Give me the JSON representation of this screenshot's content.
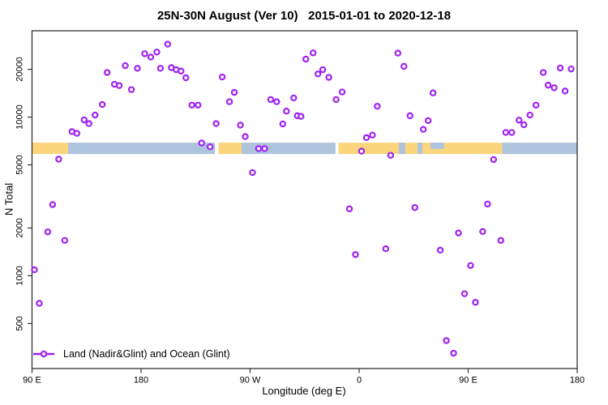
{
  "title": "25N-30N August (Ver 10)   2015-01-01 to 2020-12-18",
  "chart_data": {
    "type": "scatter",
    "title": "25N-30N August (Ver 10)   2015-01-01 to 2020-12-18",
    "xlabel": "Longitude (deg E)",
    "ylabel": "N Total",
    "grid": false,
    "x_axis": {
      "min": 90,
      "max": 540,
      "note": "axis wraps eastward: 90E -> 180 -> 90W -> 0 -> 90E -> 180",
      "ticks": [
        {
          "value": 90,
          "label": "90 E"
        },
        {
          "value": 180,
          "label": "180"
        },
        {
          "value": 270,
          "label": "90 W"
        },
        {
          "value": 360,
          "label": "0"
        },
        {
          "value": 450,
          "label": "90 E"
        },
        {
          "value": 540,
          "label": "180"
        }
      ]
    },
    "y_axis": {
      "scale": "log",
      "min": 260,
      "max": 35000,
      "ticks": [
        {
          "value": 20000,
          "label": "20000"
        },
        {
          "value": 10000,
          "label": "10000"
        },
        {
          "value": 5000,
          "label": "5000"
        },
        {
          "value": 2000,
          "label": "2000"
        },
        {
          "value": 1000,
          "label": "1000"
        },
        {
          "value": 500,
          "label": "500"
        }
      ]
    },
    "legend": {
      "label": "Land (Nadir&Glint) and Ocean (Glint)",
      "position": "bottom-left"
    },
    "marker": {
      "shape": "open-circle",
      "stroke_color": "#A020F0",
      "fill_color": "#ffffff",
      "radius": 3.1,
      "stroke_width": 2.2
    },
    "surface_band": {
      "value_top": 6900,
      "value_bottom": 5850,
      "colors": {
        "land": "#FAD57C",
        "ocean": "#AEC3DC"
      },
      "segments": [
        {
          "from": 90,
          "to": 119.8,
          "type": "land"
        },
        {
          "from": 119.8,
          "to": 241,
          "type": "ocean"
        },
        {
          "from": 244,
          "to": 263,
          "type": "land"
        },
        {
          "from": 263,
          "to": 340.5,
          "type": "ocean"
        },
        {
          "from": 343,
          "to": 478,
          "type": "land"
        },
        {
          "from": 478,
          "to": 540,
          "type": "ocean"
        }
      ],
      "inclusions": [
        {
          "from": 392.8,
          "to": 398.2,
          "type": "ocean",
          "half": "full"
        },
        {
          "from": 408.2,
          "to": 412.2,
          "type": "ocean",
          "half": "full"
        },
        {
          "from": 419,
          "to": 430,
          "type": "ocean",
          "half": "top"
        }
      ]
    },
    "points": [
      [
        202,
        28800
      ],
      [
        183,
        25100
      ],
      [
        188,
        23900
      ],
      [
        193,
        25700
      ],
      [
        167,
        21100
      ],
      [
        177,
        20300
      ],
      [
        196,
        20300
      ],
      [
        205,
        20500
      ],
      [
        209,
        19900
      ],
      [
        213,
        19500
      ],
      [
        152,
        19100
      ],
      [
        217,
        17700
      ],
      [
        158,
        16100
      ],
      [
        162,
        15800
      ],
      [
        172,
        14900
      ],
      [
        148,
        12000
      ],
      [
        142,
        10300
      ],
      [
        133,
        9600
      ],
      [
        137,
        9100
      ],
      [
        123,
        8100
      ],
      [
        127,
        7900
      ],
      [
        222,
        11900
      ],
      [
        227,
        11900
      ],
      [
        230,
        6870
      ],
      [
        237,
        6500
      ],
      [
        112,
        5430
      ],
      [
        242,
        9100
      ],
      [
        247,
        17900
      ],
      [
        257,
        14300
      ],
      [
        253,
        12500
      ],
      [
        262,
        8900
      ],
      [
        266,
        7540
      ],
      [
        277,
        6330
      ],
      [
        282,
        6330
      ],
      [
        272,
        4470
      ],
      [
        287,
        12900
      ],
      [
        292,
        12500
      ],
      [
        300,
        10900
      ],
      [
        306,
        13200
      ],
      [
        309,
        10200
      ],
      [
        297,
        9050
      ],
      [
        312,
        10100
      ],
      [
        316,
        23200
      ],
      [
        322,
        25400
      ],
      [
        326,
        18700
      ],
      [
        330,
        19900
      ],
      [
        335,
        17800
      ],
      [
        341,
        12900
      ],
      [
        346,
        14400
      ],
      [
        375,
        11700
      ],
      [
        366,
        7420
      ],
      [
        371,
        7700
      ],
      [
        362,
        6100
      ],
      [
        386,
        5740
      ],
      [
        392,
        25300
      ],
      [
        397,
        20900
      ],
      [
        421,
        14200
      ],
      [
        402,
        10200
      ],
      [
        417,
        9500
      ],
      [
        413,
        8370
      ],
      [
        481,
        8000
      ],
      [
        486,
        8000
      ],
      [
        492,
        9570
      ],
      [
        496,
        8950
      ],
      [
        501,
        10300
      ],
      [
        506,
        11900
      ],
      [
        512,
        19100
      ],
      [
        516,
        15900
      ],
      [
        521,
        15300
      ],
      [
        526,
        20400
      ],
      [
        530,
        14600
      ],
      [
        535,
        20100
      ],
      [
        471,
        5400
      ],
      [
        352,
        2640
      ],
      [
        357,
        1360
      ],
      [
        382,
        1480
      ],
      [
        406,
        2690
      ],
      [
        466,
        2830
      ],
      [
        442,
        1860
      ],
      [
        462,
        1900
      ],
      [
        477,
        1670
      ],
      [
        427,
        1450
      ],
      [
        452,
        1160
      ],
      [
        447,
        770
      ],
      [
        456,
        680
      ],
      [
        432,
        390
      ],
      [
        438,
        325
      ],
      [
        107,
        2810
      ],
      [
        103,
        1890
      ],
      [
        117,
        1670
      ],
      [
        92,
        1090
      ],
      [
        96,
        670
      ]
    ]
  },
  "colors": {
    "axis": "#333333",
    "text": "#000000",
    "background": "#ffffff"
  }
}
